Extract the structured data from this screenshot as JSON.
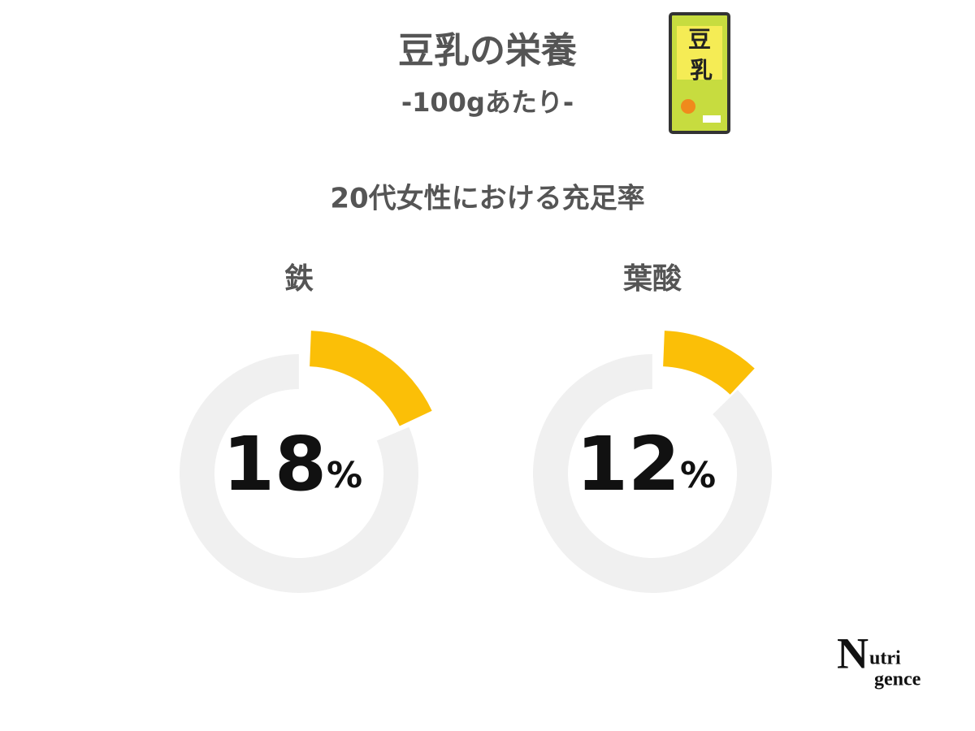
{
  "header": {
    "title": "豆乳の栄養",
    "subtitle": "-100gあたり-",
    "caption": "20代女性における充足率"
  },
  "package_label": [
    "豆",
    "乳"
  ],
  "logo": {
    "initial": "N",
    "line1": "utri",
    "line2": "gence"
  },
  "chart_data": [
    {
      "type": "donut",
      "title": "鉄",
      "values": [
        18
      ],
      "unit": "%",
      "color": "#fbbf07",
      "track_color": "#f0f0f0"
    },
    {
      "type": "donut",
      "title": "葉酸",
      "values": [
        12
      ],
      "unit": "%",
      "color": "#fbbf07",
      "track_color": "#f0f0f0"
    }
  ]
}
